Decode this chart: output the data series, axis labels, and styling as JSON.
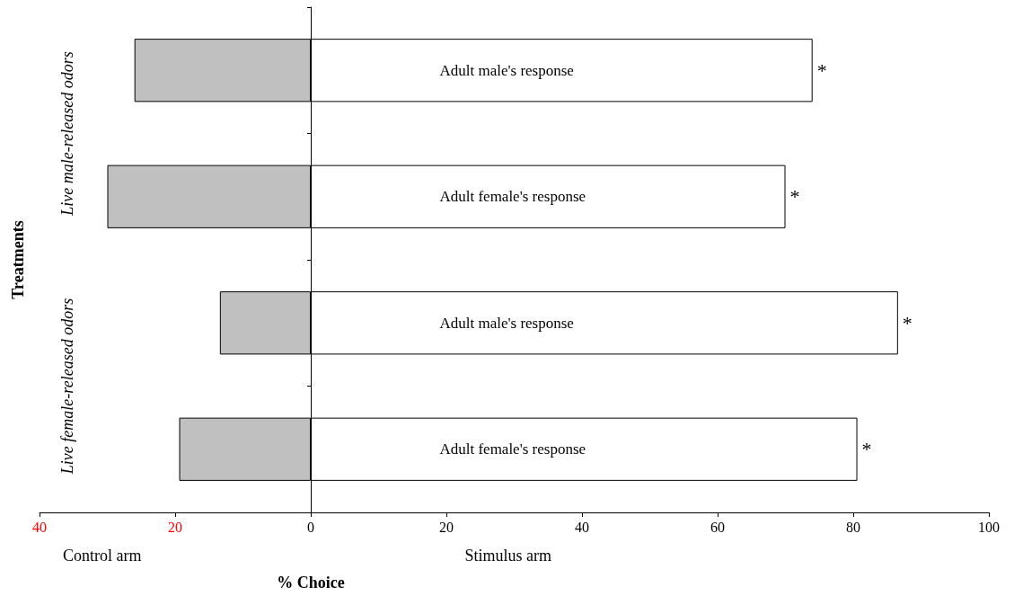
{
  "chart_data": {
    "type": "bar",
    "orientation": "horizontal",
    "stacked": true,
    "categories": [
      "Adult male's response",
      "Adult female's response",
      "Adult male's response",
      "Adult female's response"
    ],
    "series": [
      {
        "color": "#c0c0c0",
        "values": [
          -26,
          -30,
          -13.4,
          -19.4
        ]
      },
      {
        "color": "#ffffff",
        "values": [
          74,
          70,
          86.6,
          80.6
        ],
        "value_labels": [
          "*",
          "*",
          "*",
          "*"
        ]
      }
    ],
    "xlim": [
      -40,
      100
    ],
    "xticks": [
      {
        "value": -40,
        "label": "40"
      },
      {
        "value": -20,
        "label": "20"
      },
      0,
      20,
      40,
      60,
      80,
      100
    ],
    "xlabel": "% Choice",
    "ylabel": "Treatments",
    "annotations": [
      "Live male-released odors",
      "Live female-released odors",
      "Control arm",
      "Stimulus arm"
    ]
  }
}
